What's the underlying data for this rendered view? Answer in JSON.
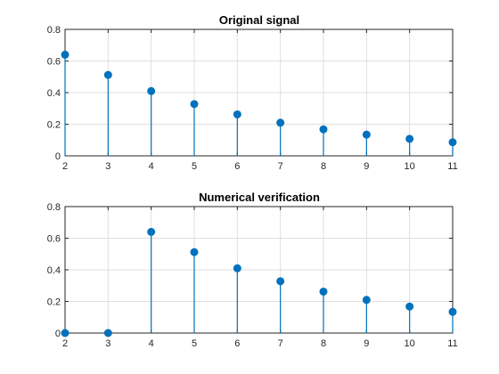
{
  "chart_data": [
    {
      "type": "stem",
      "title": "Original signal",
      "x": [
        2,
        3,
        4,
        5,
        6,
        7,
        8,
        9,
        10,
        11
      ],
      "y": [
        0.64,
        0.512,
        0.4096,
        0.3277,
        0.2621,
        0.2097,
        0.1678,
        0.1342,
        0.1074,
        0.0859
      ],
      "xlim": [
        2,
        11
      ],
      "ylim": [
        0,
        0.8
      ],
      "xticks": [
        "2",
        "3",
        "4",
        "5",
        "6",
        "7",
        "8",
        "9",
        "10",
        "11"
      ],
      "yticks": [
        "0",
        "0.2",
        "0.4",
        "0.6",
        "0.8"
      ],
      "grid": true,
      "color": "#0072BD"
    },
    {
      "type": "stem",
      "title": "Numerical verification",
      "x": [
        2,
        3,
        4,
        5,
        6,
        7,
        8,
        9,
        10,
        11
      ],
      "y": [
        0,
        0,
        0.64,
        0.512,
        0.4096,
        0.3277,
        0.2621,
        0.2097,
        0.1678,
        0.1342
      ],
      "xlim": [
        2,
        11
      ],
      "ylim": [
        0,
        0.8
      ],
      "xticks": [
        "2",
        "3",
        "4",
        "5",
        "6",
        "7",
        "8",
        "9",
        "10",
        "11"
      ],
      "yticks": [
        "0",
        "0.2",
        "0.4",
        "0.6",
        "0.8"
      ],
      "grid": true,
      "color": "#0072BD"
    }
  ]
}
